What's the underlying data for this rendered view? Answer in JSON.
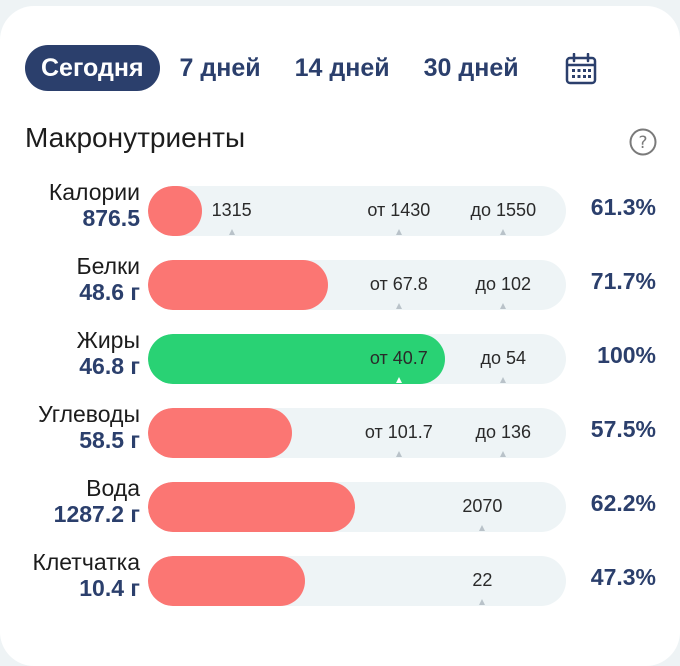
{
  "tabs": [
    "Сегодня",
    "7 дней",
    "14 дней",
    "30 дней"
  ],
  "active_tab": 0,
  "section_title": "Макронутриенты",
  "icons": {
    "calendar": "calendar-icon",
    "help": "help-icon"
  },
  "colors": {
    "accent": "#2b3f6c",
    "over": "#fb7673",
    "ok": "#29d274",
    "track": "#eef4f6"
  },
  "rows": [
    {
      "name": "Калории",
      "value": "876.5",
      "percent": "61.3%",
      "fill_fraction": 0.13,
      "fill_color": "red",
      "marks": [
        {
          "text": "1315",
          "pos": 0.2
        },
        {
          "text": "от 1430",
          "pos": 0.6
        },
        {
          "text": "до 1550",
          "pos": 0.85
        }
      ]
    },
    {
      "name": "Белки",
      "value": "48.6 г",
      "percent": "71.7%",
      "fill_fraction": 0.43,
      "fill_color": "red",
      "marks": [
        {
          "text": "от 67.8",
          "pos": 0.6
        },
        {
          "text": "до 102",
          "pos": 0.85
        }
      ]
    },
    {
      "name": "Жиры",
      "value": "46.8 г",
      "percent": "100%",
      "fill_fraction": 0.71,
      "fill_color": "green",
      "marks": [
        {
          "text": "от 40.7",
          "pos": 0.6,
          "white_caret": true
        },
        {
          "text": "до 54",
          "pos": 0.85
        }
      ]
    },
    {
      "name": "Углеводы",
      "value": "58.5 г",
      "percent": "57.5%",
      "fill_fraction": 0.345,
      "fill_color": "red",
      "marks": [
        {
          "text": "от 101.7",
          "pos": 0.6
        },
        {
          "text": "до 136",
          "pos": 0.85
        }
      ]
    },
    {
      "name": "Вода",
      "value": "1287.2 г",
      "percent": "62.2%",
      "fill_fraction": 0.495,
      "fill_color": "red",
      "marks": [
        {
          "text": "2070",
          "pos": 0.8
        }
      ]
    },
    {
      "name": "Клетчатка",
      "value": "10.4 г",
      "percent": "47.3%",
      "fill_fraction": 0.375,
      "fill_color": "red",
      "marks": [
        {
          "text": "22",
          "pos": 0.8
        }
      ]
    }
  ]
}
